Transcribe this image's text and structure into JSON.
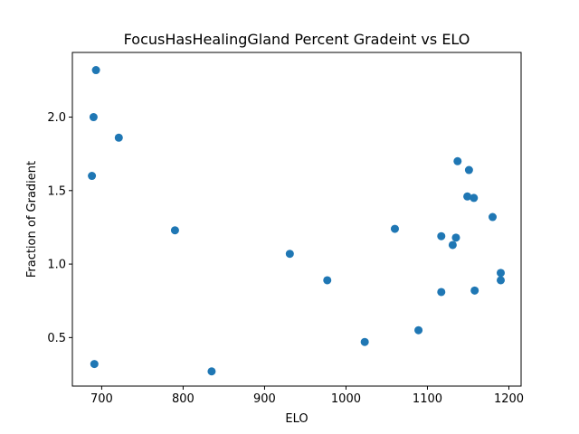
{
  "chart_data": {
    "type": "scatter",
    "title": "FocusHasHealingGland Percent Gradeint vs ELO",
    "xlabel": "ELO",
    "ylabel": "Fraction of Gradient",
    "xlim": [
      664,
      1215
    ],
    "ylim": [
      0.17,
      2.44
    ],
    "xticks": [
      700,
      800,
      900,
      1000,
      1100,
      1200
    ],
    "yticks": [
      0.5,
      1.0,
      1.5,
      2.0
    ],
    "ytick_labels": [
      "0.5",
      "1.0",
      "1.5",
      "2.0"
    ],
    "grid": false,
    "marker_color": "#1f77b4",
    "points": [
      {
        "x": 693,
        "y": 2.32
      },
      {
        "x": 690,
        "y": 2.0
      },
      {
        "x": 721,
        "y": 1.86
      },
      {
        "x": 688,
        "y": 1.6
      },
      {
        "x": 691,
        "y": 0.32
      },
      {
        "x": 790,
        "y": 1.23
      },
      {
        "x": 835,
        "y": 0.27
      },
      {
        "x": 931,
        "y": 1.07
      },
      {
        "x": 977,
        "y": 0.89
      },
      {
        "x": 1023,
        "y": 0.47
      },
      {
        "x": 1060,
        "y": 1.24
      },
      {
        "x": 1089,
        "y": 0.55
      },
      {
        "x": 1117,
        "y": 1.19
      },
      {
        "x": 1117,
        "y": 0.81
      },
      {
        "x": 1131,
        "y": 1.13
      },
      {
        "x": 1135,
        "y": 1.18
      },
      {
        "x": 1137,
        "y": 1.7
      },
      {
        "x": 1149,
        "y": 1.46
      },
      {
        "x": 1151,
        "y": 1.64
      },
      {
        "x": 1157,
        "y": 1.45
      },
      {
        "x": 1158,
        "y": 0.82
      },
      {
        "x": 1180,
        "y": 1.32
      },
      {
        "x": 1190,
        "y": 0.94
      },
      {
        "x": 1190,
        "y": 0.89
      }
    ]
  }
}
